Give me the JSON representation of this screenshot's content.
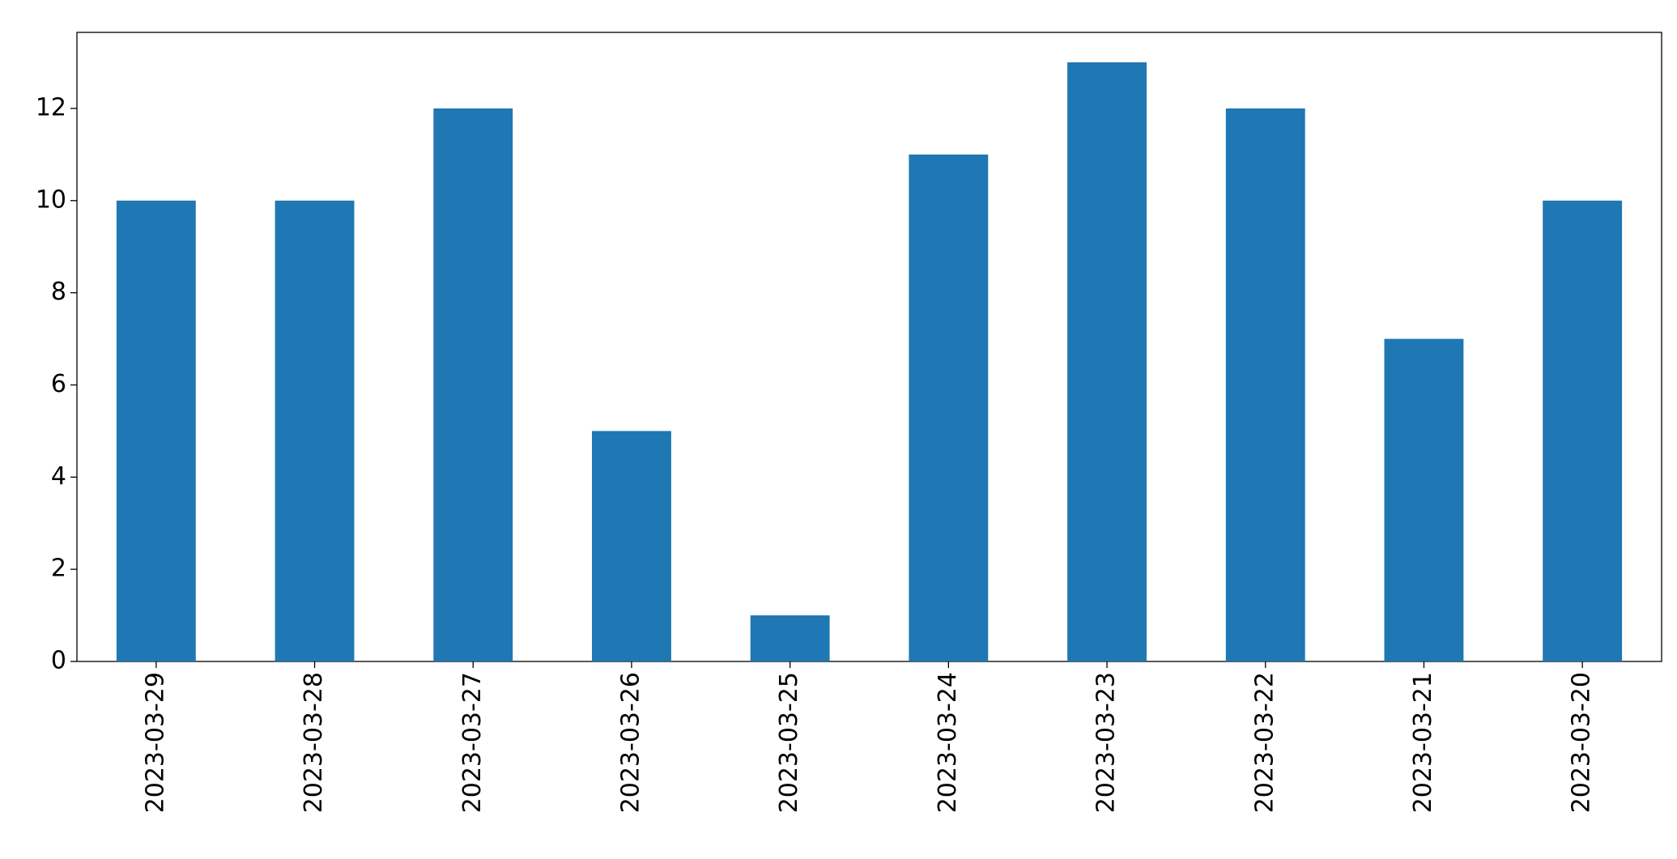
{
  "chart_data": {
    "type": "bar",
    "categories": [
      "2023-03-29",
      "2023-03-28",
      "2023-03-27",
      "2023-03-26",
      "2023-03-25",
      "2023-03-24",
      "2023-03-23",
      "2023-03-22",
      "2023-03-21",
      "2023-03-20"
    ],
    "values": [
      10,
      10,
      12,
      5,
      1,
      11,
      13,
      12,
      7,
      10
    ],
    "color": "#1f77b4",
    "ylim": [
      0,
      13.65
    ],
    "yticks": [
      0,
      2,
      4,
      6,
      8,
      10,
      12
    ],
    "grid": false
  }
}
